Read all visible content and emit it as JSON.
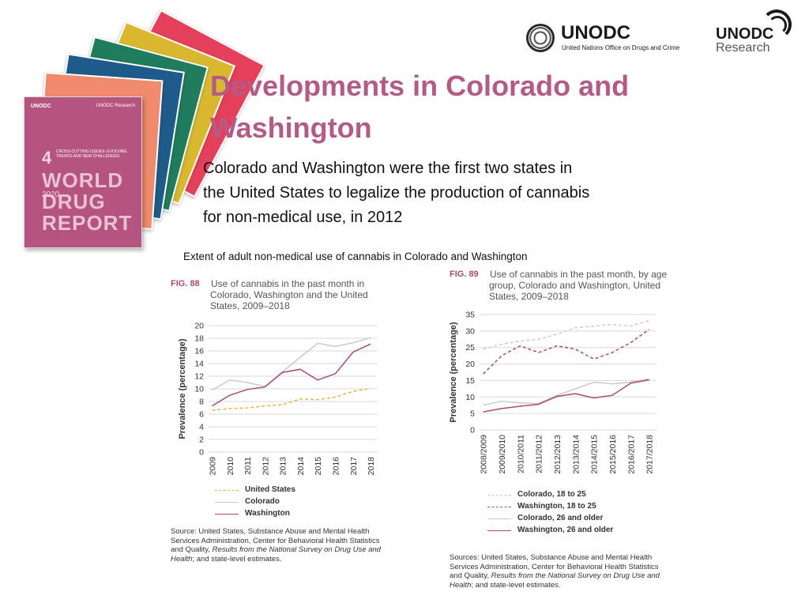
{
  "slide": {
    "title_line1": "Developments in Colorado and",
    "title_line2": "Washington",
    "intro_line1": "Colorado and Washington were the first two states  in",
    "intro_line2": "the United States to legalize the production of cannabis",
    "intro_line3": "for non-medical use, in 2012",
    "extent_caption": "Extent of adult non-medical use of cannabis in Colorado and  Washington"
  },
  "logos": {
    "unodc_word": "UNODC",
    "unodc_tagline": "United Nations Office on Drugs and Crime",
    "research_word": "UNODC",
    "research_sub": "Research"
  },
  "report_cover": {
    "org": "UNODC",
    "org2": "UNODC Research",
    "number": "4",
    "subtitle": "CROSS-CUTTING ISSUES: EVOLVING TRENDS AND NEW CHALLENGES",
    "title_line1": "WORLD",
    "title_line2": "DRUG",
    "title_line3": "REPORT",
    "year": "2020",
    "stack_colors": [
      "#e5405b",
      "#d9b830",
      "#1f7c5c",
      "#1d5c8a",
      "#f08a6c"
    ]
  },
  "colors": {
    "title": "#b25c85",
    "washington": "#a64c74",
    "colorado": "#cfc7cf",
    "united_states": "#e0b64a",
    "grid": "#d9d9d9"
  },
  "chart_data": [
    {
      "type": "line",
      "fig_label": "FIG. 88",
      "title": "Use of cannabis in the past month in Colorado, Washington and the United States, 2009–2018",
      "ylabel": "Prevalence (percentage)",
      "xlabel": "",
      "ylim": [
        0,
        20
      ],
      "yticks": [
        0,
        2,
        4,
        6,
        8,
        10,
        12,
        14,
        16,
        18,
        20
      ],
      "categories": [
        "2009",
        "2010",
        "2011",
        "2012",
        "2013",
        "2014",
        "2015",
        "2016",
        "2017",
        "2018"
      ],
      "grid": true,
      "legend_position": "bottom",
      "series": [
        {
          "name": "United States",
          "style": "dashed",
          "color": "#e0b64a",
          "values": [
            6.6,
            6.9,
            7.0,
            7.3,
            7.5,
            8.4,
            8.3,
            8.7,
            9.6,
            10.1
          ]
        },
        {
          "name": "Colorado",
          "style": "solid-light",
          "color": "#cfc7cf",
          "values": [
            9.8,
            11.4,
            11.0,
            10.4,
            12.7,
            15.0,
            17.2,
            16.7,
            17.3,
            18.1
          ]
        },
        {
          "name": "Washington",
          "style": "solid",
          "color": "#a64c74",
          "values": [
            7.3,
            9.0,
            9.9,
            10.3,
            12.6,
            13.1,
            11.4,
            12.4,
            15.8,
            17.1
          ]
        }
      ],
      "source_prefix": "Source: United States, Substance Abuse and Mental Health Services Administration, Center for Behavioral Health Statistics and Quality, ",
      "source_italic": "Results from the National Survey on Drug Use and Health",
      "source_suffix": "; and state-level estimates."
    },
    {
      "type": "line",
      "fig_label": "FIG. 89",
      "title": "Use of cannabis in the past month, by age group, Colorado and Washington, United States, 2009–2018",
      "ylabel": "Prevalence (percentage)",
      "xlabel": "",
      "ylim": [
        0,
        35
      ],
      "yticks": [
        0,
        5,
        10,
        15,
        20,
        25,
        30,
        35
      ],
      "categories": [
        "2008/2009",
        "2009/2010",
        "2010/2011",
        "2011/2012",
        "2012/2013",
        "2013/2014",
        "2014/2015",
        "2015/2016",
        "2016/2017",
        "2017/2018"
      ],
      "grid": true,
      "legend_position": "bottom",
      "series": [
        {
          "name": "Colorado, 18 to 25",
          "style": "dashed-light",
          "color": "#cfc7cf",
          "values": [
            24.5,
            26.0,
            27.0,
            27.5,
            29.0,
            31.0,
            31.5,
            32.0,
            31.5,
            33.2
          ]
        },
        {
          "name": "Washington, 18 to 25",
          "style": "dashed",
          "color": "#a64c74",
          "values": [
            17.0,
            22.5,
            25.5,
            23.5,
            25.5,
            24.5,
            21.5,
            23.5,
            26.5,
            30.5
          ]
        },
        {
          "name": "Colorado, 26 and older",
          "style": "solid-light",
          "color": "#cfc7cf",
          "values": [
            7.5,
            8.7,
            8.2,
            8.0,
            10.5,
            12.5,
            14.5,
            14.0,
            14.5,
            15.5
          ]
        },
        {
          "name": "Washington, 26 and older",
          "style": "solid",
          "color": "#a64c74",
          "values": [
            5.5,
            6.5,
            7.2,
            7.8,
            10.2,
            11.0,
            9.7,
            10.5,
            14.2,
            15.2
          ]
        }
      ],
      "source_prefix": "Sources: United States, Substance Abuse and Mental Health Services Administration, Center for Behavioral Health Statistics and Quality, ",
      "source_italic": "Results from the National Survey on Drug Use and Health",
      "source_suffix": "; and state-level estimates."
    }
  ]
}
